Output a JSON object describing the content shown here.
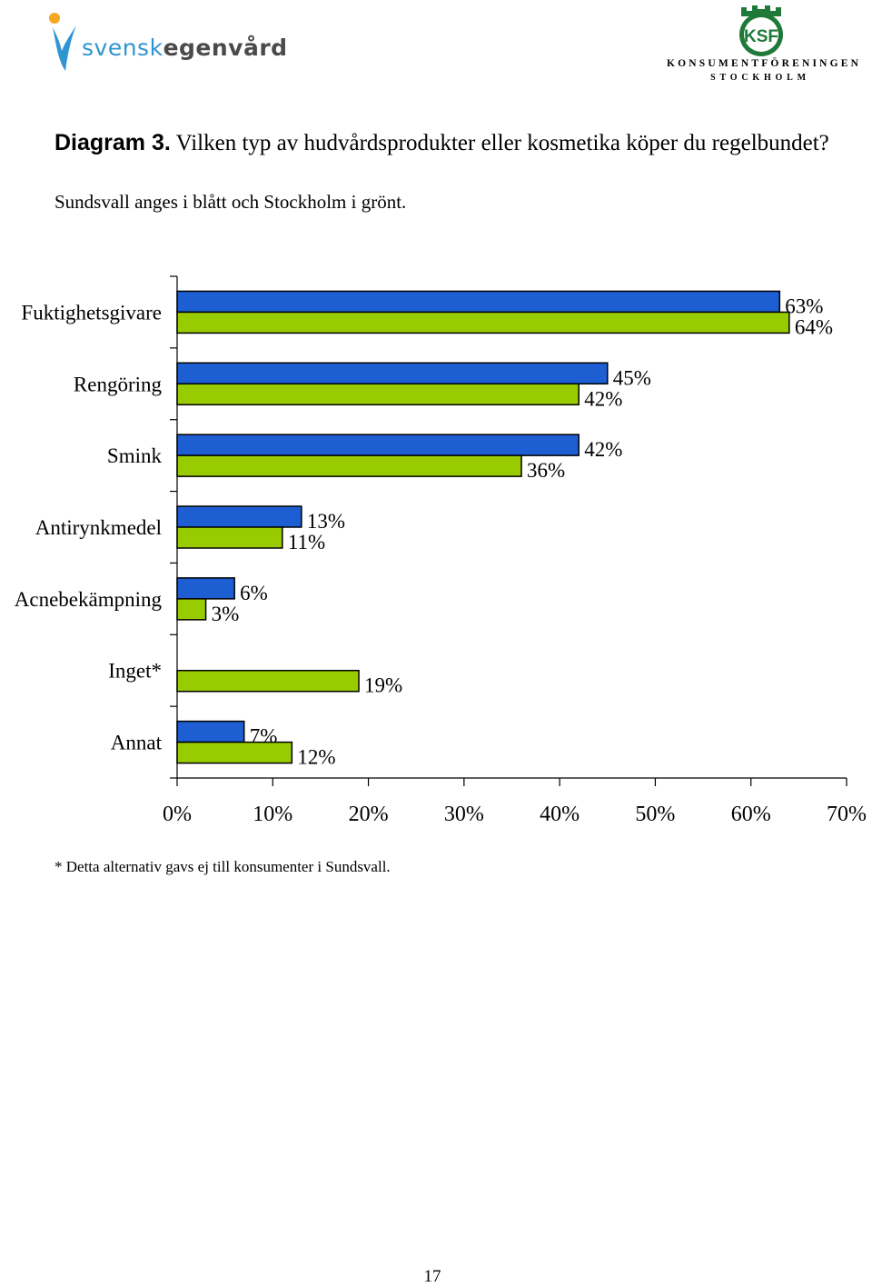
{
  "header": {
    "logo_left": {
      "part1": "svensk",
      "part2": "egenvård"
    },
    "logo_right": {
      "monogram": "KSF",
      "line1": "KONSUMENTFÖRENINGEN",
      "line2": "STOCKHOLM"
    }
  },
  "heading": {
    "prefix": "Diagram 3.",
    "text": "Vilken typ av hudvårdsprodukter eller kosmetika köper du regelbundet?",
    "subtitle": "Sundsvall anges i blått och Stockholm i grönt."
  },
  "chart_data": {
    "type": "bar",
    "orientation": "horizontal",
    "categories": [
      "Fuktighetsgivare",
      "Rengöring",
      "Smink",
      "Antirynkmedel",
      "Acnebekämpning",
      "Inget*",
      "Annat"
    ],
    "series": [
      {
        "color": "#1d5fd3",
        "values": [
          63,
          45,
          42,
          13,
          6,
          null,
          7
        ],
        "labels": [
          "63%",
          "45%",
          "42%",
          "13%",
          "6%",
          "",
          "7%"
        ]
      },
      {
        "color": "#99cc00",
        "values": [
          64,
          42,
          36,
          11,
          3,
          19,
          12
        ],
        "labels": [
          "64%",
          "42%",
          "36%",
          "11%",
          "3%",
          "19%",
          "12%"
        ]
      }
    ],
    "xlim": [
      0,
      70
    ],
    "xticks": [
      0,
      10,
      20,
      30,
      40,
      50,
      60,
      70
    ],
    "xtick_labels": [
      "0%",
      "10%",
      "20%",
      "30%",
      "40%",
      "50%",
      "60%",
      "70%"
    ],
    "grid": false,
    "legend": "none"
  },
  "footnote": "* Detta alternativ gavs ej till konsumenter i Sundsvall.",
  "page_number": "17"
}
